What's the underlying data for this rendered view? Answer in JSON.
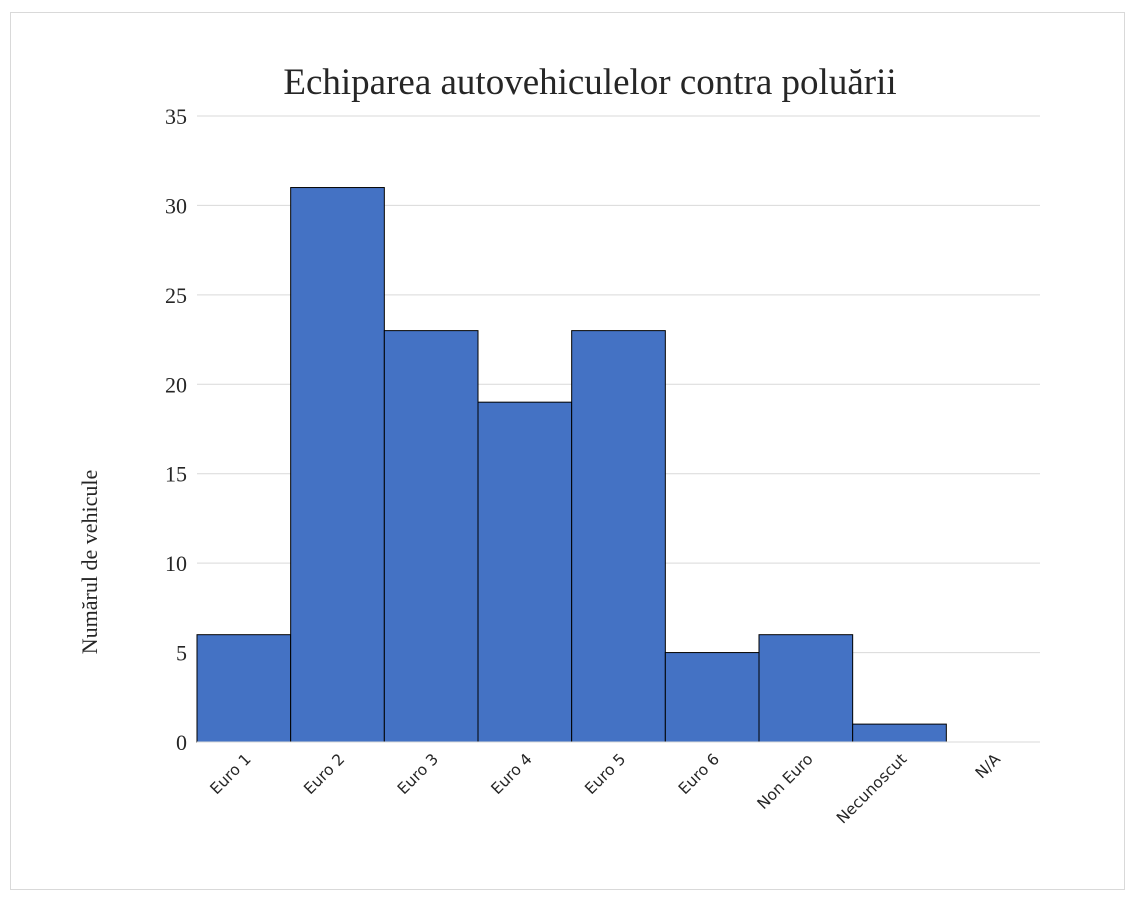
{
  "chart_data": {
    "type": "bar",
    "title": "Echiparea autovehiculelor contra poluării",
    "xlabel": "",
    "ylabel": "Numărul de vehicule",
    "categories": [
      "Euro 1",
      "Euro 2",
      "Euro 3",
      "Euro 4",
      "Euro 5",
      "Euro 6",
      "Non Euro",
      "Necunoscut",
      "N/A"
    ],
    "values": [
      6,
      31,
      23,
      19,
      23,
      5,
      6,
      1,
      0
    ],
    "ylim": [
      0,
      35
    ],
    "yticks": [
      0,
      5,
      10,
      15,
      20,
      25,
      30,
      35
    ],
    "grid": true,
    "legend": "none",
    "colors": {
      "bar_fill": "#4472c4",
      "bar_edge": "#000000",
      "grid": "#d9d9d9",
      "axis": "#d9d9d9",
      "text": "#262626"
    }
  }
}
